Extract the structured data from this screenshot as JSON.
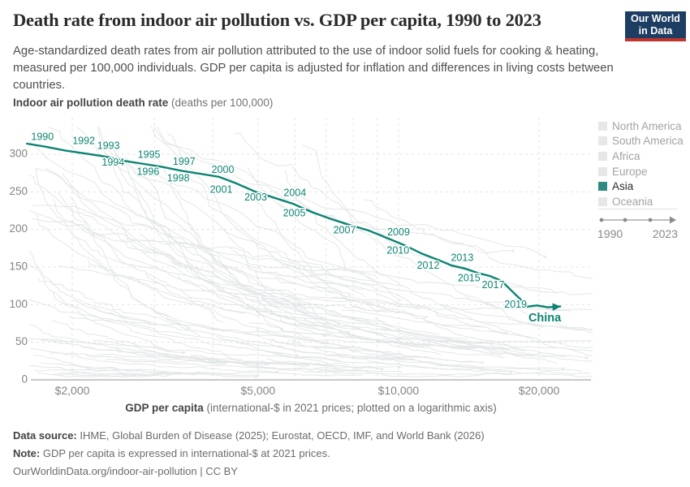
{
  "header": {
    "title": "Death rate from indoor air pollution vs. GDP per capita, 1990 to 2023",
    "subtitle": "Age-standardized death rates from air pollution attributed to the use of indoor solid fuels for cooking & heating, measured per 100,000 individuals. GDP per capita is adjusted for inflation and differences in living costs between countries.",
    "logo": {
      "line1": "Our World",
      "line2": "in Data",
      "bg": "#1d3d63",
      "stripe": "#c0342f"
    }
  },
  "chart_data": {
    "type": "line",
    "title": "Death rate from indoor air pollution vs. GDP per capita, 1990 to 2023",
    "y_axis_title": "Indoor air pollution death rate",
    "y_axis_unit": " (deaths per 100,000)",
    "x_axis_title": "GDP per capita",
    "x_axis_note": " (international-$ in 2021 prices; plotted on a logarithmic axis)",
    "x_scale": "log",
    "x_domain": [
      1630,
      25800
    ],
    "y_domain": [
      0,
      348
    ],
    "grid": true,
    "x_ticks": [
      {
        "v": 2000,
        "label": "$2,000"
      },
      {
        "v": 3000
      },
      {
        "v": 4000
      },
      {
        "v": 5000,
        "label": "$5,000"
      },
      {
        "v": 6000
      },
      {
        "v": 7000
      },
      {
        "v": 8000
      },
      {
        "v": 9000
      },
      {
        "v": 10000,
        "label": "$10,000"
      },
      {
        "v": 20000,
        "label": "$20,000"
      }
    ],
    "y_ticks": [
      {
        "v": 0,
        "label": "0"
      },
      {
        "v": 50,
        "label": "50"
      },
      {
        "v": 100,
        "label": "100"
      },
      {
        "v": 150,
        "label": "150"
      },
      {
        "v": 200,
        "label": "200"
      },
      {
        "v": 250,
        "label": "250"
      },
      {
        "v": 300,
        "label": "300"
      }
    ],
    "series": [
      {
        "name": "China",
        "color": "#0c8472",
        "end_label": "China",
        "years": [
          1990,
          1991,
          1992,
          1993,
          1994,
          1995,
          1996,
          1997,
          1998,
          1999,
          2000,
          2001,
          2002,
          2003,
          2004,
          2005,
          2006,
          2007,
          2008,
          2009,
          2010,
          2011,
          2012,
          2013,
          2014,
          2015,
          2016,
          2017,
          2018,
          2019,
          2020,
          2021,
          2022,
          2023
        ],
        "gdp": [
          1600,
          1750,
          1930,
          2130,
          2350,
          2590,
          2850,
          3130,
          3430,
          3760,
          4120,
          4500,
          4940,
          5420,
          5950,
          6530,
          7160,
          7850,
          8600,
          9420,
          10300,
          11200,
          12100,
          13000,
          13900,
          14800,
          15700,
          16600,
          17500,
          18400,
          18700,
          19800,
          20900,
          22200
        ],
        "death_rate": [
          314,
          310,
          305,
          301,
          297,
          291,
          287,
          283,
          278,
          274,
          270,
          261,
          250,
          242,
          234,
          223,
          214,
          206,
          199,
          189,
          179,
          168,
          160,
          152,
          148,
          142,
          138,
          132,
          118,
          105,
          97,
          99,
          96.5,
          97.5
        ],
        "year_labels": [
          {
            "year": 1990,
            "dx": 19,
            "dy": -8
          },
          {
            "year": 1992,
            "dx": 23,
            "dy": -11
          },
          {
            "year": 1993,
            "dx": 29,
            "dy": -9
          },
          {
            "year": 1994,
            "dx": 10,
            "dy": 8
          },
          {
            "year": 1995,
            "dx": 30,
            "dy": -7
          },
          {
            "year": 1996,
            "dx": 5,
            "dy": 10
          },
          {
            "year": 1997,
            "dx": 26,
            "dy": -6
          },
          {
            "year": 1998,
            "dx": -4,
            "dy": 10
          },
          {
            "year": 2000,
            "dx": 5,
            "dy": -8
          },
          {
            "year": 2001,
            "dx": -19,
            "dy": 8
          },
          {
            "year": 2003,
            "dx": -23,
            "dy": 0
          },
          {
            "year": 2004,
            "dx": 2,
            "dy": -13
          },
          {
            "year": 2005,
            "dx": -22,
            "dy": 2
          },
          {
            "year": 2007,
            "dx": -6,
            "dy": 7
          },
          {
            "year": 2009,
            "dx": 15,
            "dy": -6
          },
          {
            "year": 2010,
            "dx": -8,
            "dy": 7
          },
          {
            "year": 2012,
            "dx": -11,
            "dy": 8
          },
          {
            "year": 2013,
            "dx": 13,
            "dy": -9
          },
          {
            "year": 2015,
            "dx": -11,
            "dy": 7
          },
          {
            "year": 2017,
            "dx": -10,
            "dy": 6
          },
          {
            "year": 2019,
            "dx": -8,
            "dy": 5
          }
        ],
        "end_label_offset": {
          "dx": -19,
          "dy": 9
        }
      }
    ],
    "background_series": {
      "note": "decorative unlabeled country trajectories",
      "seed": 42,
      "count": 110,
      "color": "#d2d6d8",
      "opacity": 0.6
    },
    "legend_position": "right"
  },
  "legend": {
    "items": [
      {
        "label": "North America",
        "color": "#e7e7e7",
        "text_color": "#a3a3a3",
        "active": false
      },
      {
        "label": "South America",
        "color": "#e7e7e7",
        "text_color": "#a3a3a3",
        "active": false
      },
      {
        "label": "Africa",
        "color": "#e7e7e7",
        "text_color": "#a3a3a3",
        "active": false
      },
      {
        "label": "Europe",
        "color": "#e7e7e7",
        "text_color": "#a3a3a3",
        "active": false
      },
      {
        "label": "Asia",
        "color": "#2f8a84",
        "text_color": "#2d2d2d",
        "active": true
      },
      {
        "label": "Oceania",
        "color": "#e7e7e7",
        "text_color": "#a3a3a3",
        "active": false
      }
    ],
    "timeline": {
      "start": "1990",
      "end": "2023"
    }
  },
  "footer": {
    "source_label": "Data source:",
    "source_text": " IHME, Global Burden of Disease (2025); Eurostat, OECD, IMF, and World Bank (2026)",
    "note_label": "Note:",
    "note_text": " GDP per capita is expressed in international-$ at 2021 prices.",
    "link_text": "OurWorldinData.org/indoor-air-pollution | CC BY"
  },
  "colors": {
    "accent_teal": "#0c8472",
    "grid": "#e3e3e3",
    "axis_line": "#a8a8a8",
    "tick_text": "#848484",
    "slider": "#9a9a9a"
  }
}
